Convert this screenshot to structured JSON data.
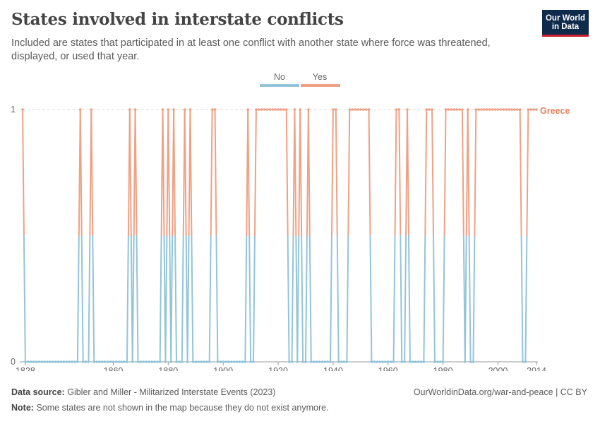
{
  "header": {
    "title": "States involved in interstate conflicts",
    "subtitle": "Included are states that participated in at least one conflict with another state where force was threatened, displayed, or used that year.",
    "logo_line1": "Our World",
    "logo_line2": "in Data"
  },
  "footer": {
    "source_label": "Data source:",
    "source_text": "Gibler and Miller - Militarized Interstate Events (2023)",
    "url": "OurWorldinData.org/war-and-peace | CC BY",
    "note_label": "Note:",
    "note_text": "Some states are not shown in the map because they do not exist anymore."
  },
  "colors": {
    "no": "#93c4d9",
    "yes": "#eea184",
    "greece_label": "#e0855f"
  },
  "chart_data": {
    "type": "line",
    "series_name": "Greece",
    "legend": [
      "No",
      "Yes"
    ],
    "legend_position": "top",
    "x_ticks": [
      1828,
      1860,
      1880,
      1900,
      1920,
      1940,
      1960,
      1980,
      2000,
      2014
    ],
    "y_ticks": [
      0,
      1
    ],
    "xlim": [
      1827,
      2014
    ],
    "ylim": [
      0,
      1
    ],
    "yes_years": [
      1827,
      1848,
      1852,
      1866,
      1868,
      1878,
      1880,
      1882,
      1886,
      1888,
      1896,
      1897,
      1909,
      1912,
      1913,
      1914,
      1915,
      1916,
      1917,
      1918,
      1919,
      1920,
      1921,
      1922,
      1923,
      1926,
      1928,
      1931,
      1940,
      1941,
      1946,
      1947,
      1948,
      1949,
      1950,
      1951,
      1952,
      1953,
      1963,
      1964,
      1967,
      1974,
      1975,
      1976,
      1981,
      1982,
      1983,
      1984,
      1985,
      1986,
      1987,
      1989,
      1992,
      1993,
      1994,
      1995,
      1996,
      1997,
      1998,
      1999,
      2000,
      2001,
      2002,
      2003,
      2004,
      2005,
      2006,
      2007,
      2008,
      2011,
      2012,
      2013,
      2014
    ]
  }
}
